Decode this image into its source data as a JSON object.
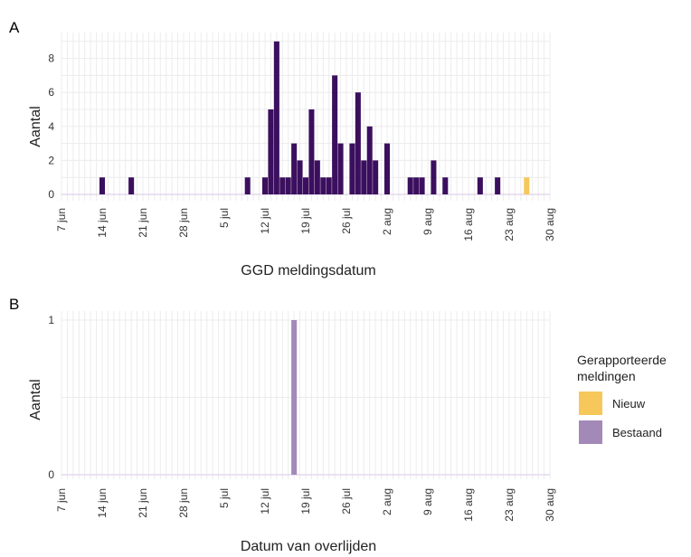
{
  "chart_data": [
    {
      "panel_label": "A",
      "type": "bar",
      "xlabel": "GGD meldingsdatum",
      "ylabel": "Aantal",
      "x_range": [
        "2020-06-07",
        "2020-08-30"
      ],
      "x_ticks": [
        "7 jun",
        "14 jun",
        "21 jun",
        "28 jun",
        "5 jul",
        "12 jul",
        "19 jul",
        "26 jul",
        "2 aug",
        "9 aug",
        "16 aug",
        "23 aug",
        "30 aug"
      ],
      "ylim": [
        0,
        9
      ],
      "y_ticks": [
        "0",
        "2",
        "4",
        "6",
        "8"
      ],
      "grid": true,
      "series": [
        {
          "name": "Bestaand",
          "color": "#3b0f5e",
          "points": [
            {
              "x": "2020-06-14",
              "y": 1
            },
            {
              "x": "2020-06-19",
              "y": 1
            },
            {
              "x": "2020-07-09",
              "y": 1
            },
            {
              "x": "2020-07-12",
              "y": 1
            },
            {
              "x": "2020-07-13",
              "y": 5
            },
            {
              "x": "2020-07-14",
              "y": 9
            },
            {
              "x": "2020-07-15",
              "y": 1
            },
            {
              "x": "2020-07-16",
              "y": 1
            },
            {
              "x": "2020-07-17",
              "y": 3
            },
            {
              "x": "2020-07-18",
              "y": 2
            },
            {
              "x": "2020-07-19",
              "y": 1
            },
            {
              "x": "2020-07-20",
              "y": 5
            },
            {
              "x": "2020-07-21",
              "y": 2
            },
            {
              "x": "2020-07-22",
              "y": 1
            },
            {
              "x": "2020-07-23",
              "y": 1
            },
            {
              "x": "2020-07-24",
              "y": 7
            },
            {
              "x": "2020-07-25",
              "y": 3
            },
            {
              "x": "2020-07-27",
              "y": 3
            },
            {
              "x": "2020-07-28",
              "y": 6
            },
            {
              "x": "2020-07-29",
              "y": 2
            },
            {
              "x": "2020-07-30",
              "y": 4
            },
            {
              "x": "2020-07-31",
              "y": 2
            },
            {
              "x": "2020-08-02",
              "y": 3
            },
            {
              "x": "2020-08-06",
              "y": 1
            },
            {
              "x": "2020-08-07",
              "y": 1
            },
            {
              "x": "2020-08-08",
              "y": 1
            },
            {
              "x": "2020-08-10",
              "y": 2
            },
            {
              "x": "2020-08-12",
              "y": 1
            },
            {
              "x": "2020-08-18",
              "y": 1
            },
            {
              "x": "2020-08-21",
              "y": 1
            }
          ]
        },
        {
          "name": "Nieuw",
          "color": "#f6c75a",
          "points": [
            {
              "x": "2020-08-26",
              "y": 1
            }
          ]
        }
      ]
    },
    {
      "panel_label": "B",
      "type": "bar",
      "xlabel": "Datum van overlijden",
      "ylabel": "Aantal",
      "x_range": [
        "2020-06-07",
        "2020-08-30"
      ],
      "x_ticks": [
        "7 jun",
        "14 jun",
        "21 jun",
        "28 jun",
        "5 jul",
        "12 jul",
        "19 jul",
        "26 jul",
        "2 aug",
        "9 aug",
        "16 aug",
        "23 aug",
        "30 aug"
      ],
      "ylim": [
        0,
        1
      ],
      "y_ticks": [
        "0",
        "1"
      ],
      "grid": true,
      "series": [
        {
          "name": "Bestaand",
          "color": "#a389b8",
          "points": [
            {
              "x": "2020-07-17",
              "y": 1
            }
          ]
        }
      ]
    }
  ],
  "legend": {
    "title_line1": "Gerapporteerde",
    "title_line2": "meldingen",
    "placement": "right",
    "items": [
      {
        "label": "Nieuw",
        "color": "#f6c75a"
      },
      {
        "label": "Bestaand",
        "color": "#a389b8"
      }
    ]
  }
}
